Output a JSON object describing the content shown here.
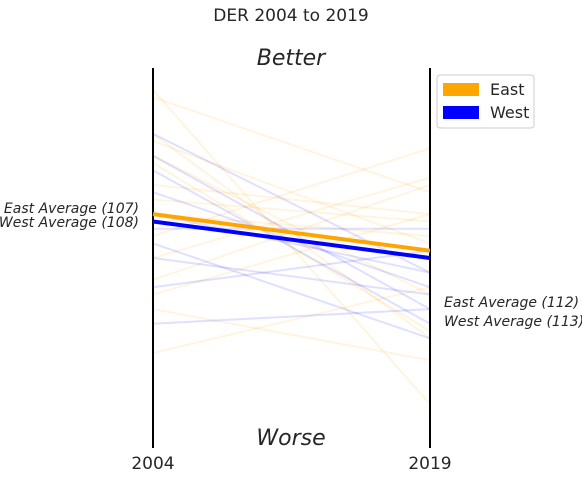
{
  "chart_data": {
    "type": "line",
    "title": "DER 2004 to 2019",
    "top_label": "Better",
    "bottom_label": "Worse",
    "x": [
      "2004",
      "2019"
    ],
    "y_inverted": true,
    "ylim": [
      87,
      139
    ],
    "legend": {
      "placement": "top-right",
      "entries": [
        {
          "name": "East",
          "color": "#FFA500"
        },
        {
          "name": "West",
          "color": "#0000FF"
        }
      ]
    },
    "averages": [
      {
        "name": "East",
        "color": "#FFA500",
        "values": [
          107,
          112
        ],
        "label_start": "East Average (107)",
        "label_end": "East Average (112)"
      },
      {
        "name": "West",
        "color": "#0000FF",
        "values": [
          108,
          113
        ],
        "label_start": "West Average (108)",
        "label_end": "West Average (113)"
      }
    ],
    "region_lines": [
      {
        "group": "East",
        "values": [
          90,
          133
        ]
      },
      {
        "group": "East",
        "values": [
          91,
          104
        ]
      },
      {
        "group": "East",
        "values": [
          96,
          124
        ]
      },
      {
        "group": "East",
        "values": [
          97,
          111
        ]
      },
      {
        "group": "East",
        "values": [
          99,
          118
        ]
      },
      {
        "group": "East",
        "values": [
          100,
          123
        ]
      },
      {
        "group": "East",
        "values": [
          103,
          107
        ]
      },
      {
        "group": "East",
        "values": [
          105,
          108
        ]
      },
      {
        "group": "East",
        "values": [
          107,
          110
        ]
      },
      {
        "group": "East",
        "values": [
          110,
          98
        ]
      },
      {
        "group": "East",
        "values": [
          113,
          102
        ]
      },
      {
        "group": "East",
        "values": [
          116,
          103
        ]
      },
      {
        "group": "East",
        "values": [
          118,
          107
        ]
      },
      {
        "group": "East",
        "values": [
          120,
          127
        ]
      },
      {
        "group": "East",
        "values": [
          126,
          117
        ]
      },
      {
        "group": "West",
        "values": [
          96,
          115
        ]
      },
      {
        "group": "West",
        "values": [
          99,
          120
        ]
      },
      {
        "group": "West",
        "values": [
          101,
          122
        ]
      },
      {
        "group": "West",
        "values": [
          104,
          117
        ]
      },
      {
        "group": "West",
        "values": [
          107,
          115
        ]
      },
      {
        "group": "West",
        "values": [
          109,
          109
        ]
      },
      {
        "group": "West",
        "values": [
          111,
          124
        ]
      },
      {
        "group": "West",
        "values": [
          113,
          118
        ]
      },
      {
        "group": "West",
        "values": [
          117,
          112
        ]
      },
      {
        "group": "West",
        "values": [
          122,
          120
        ]
      }
    ]
  }
}
